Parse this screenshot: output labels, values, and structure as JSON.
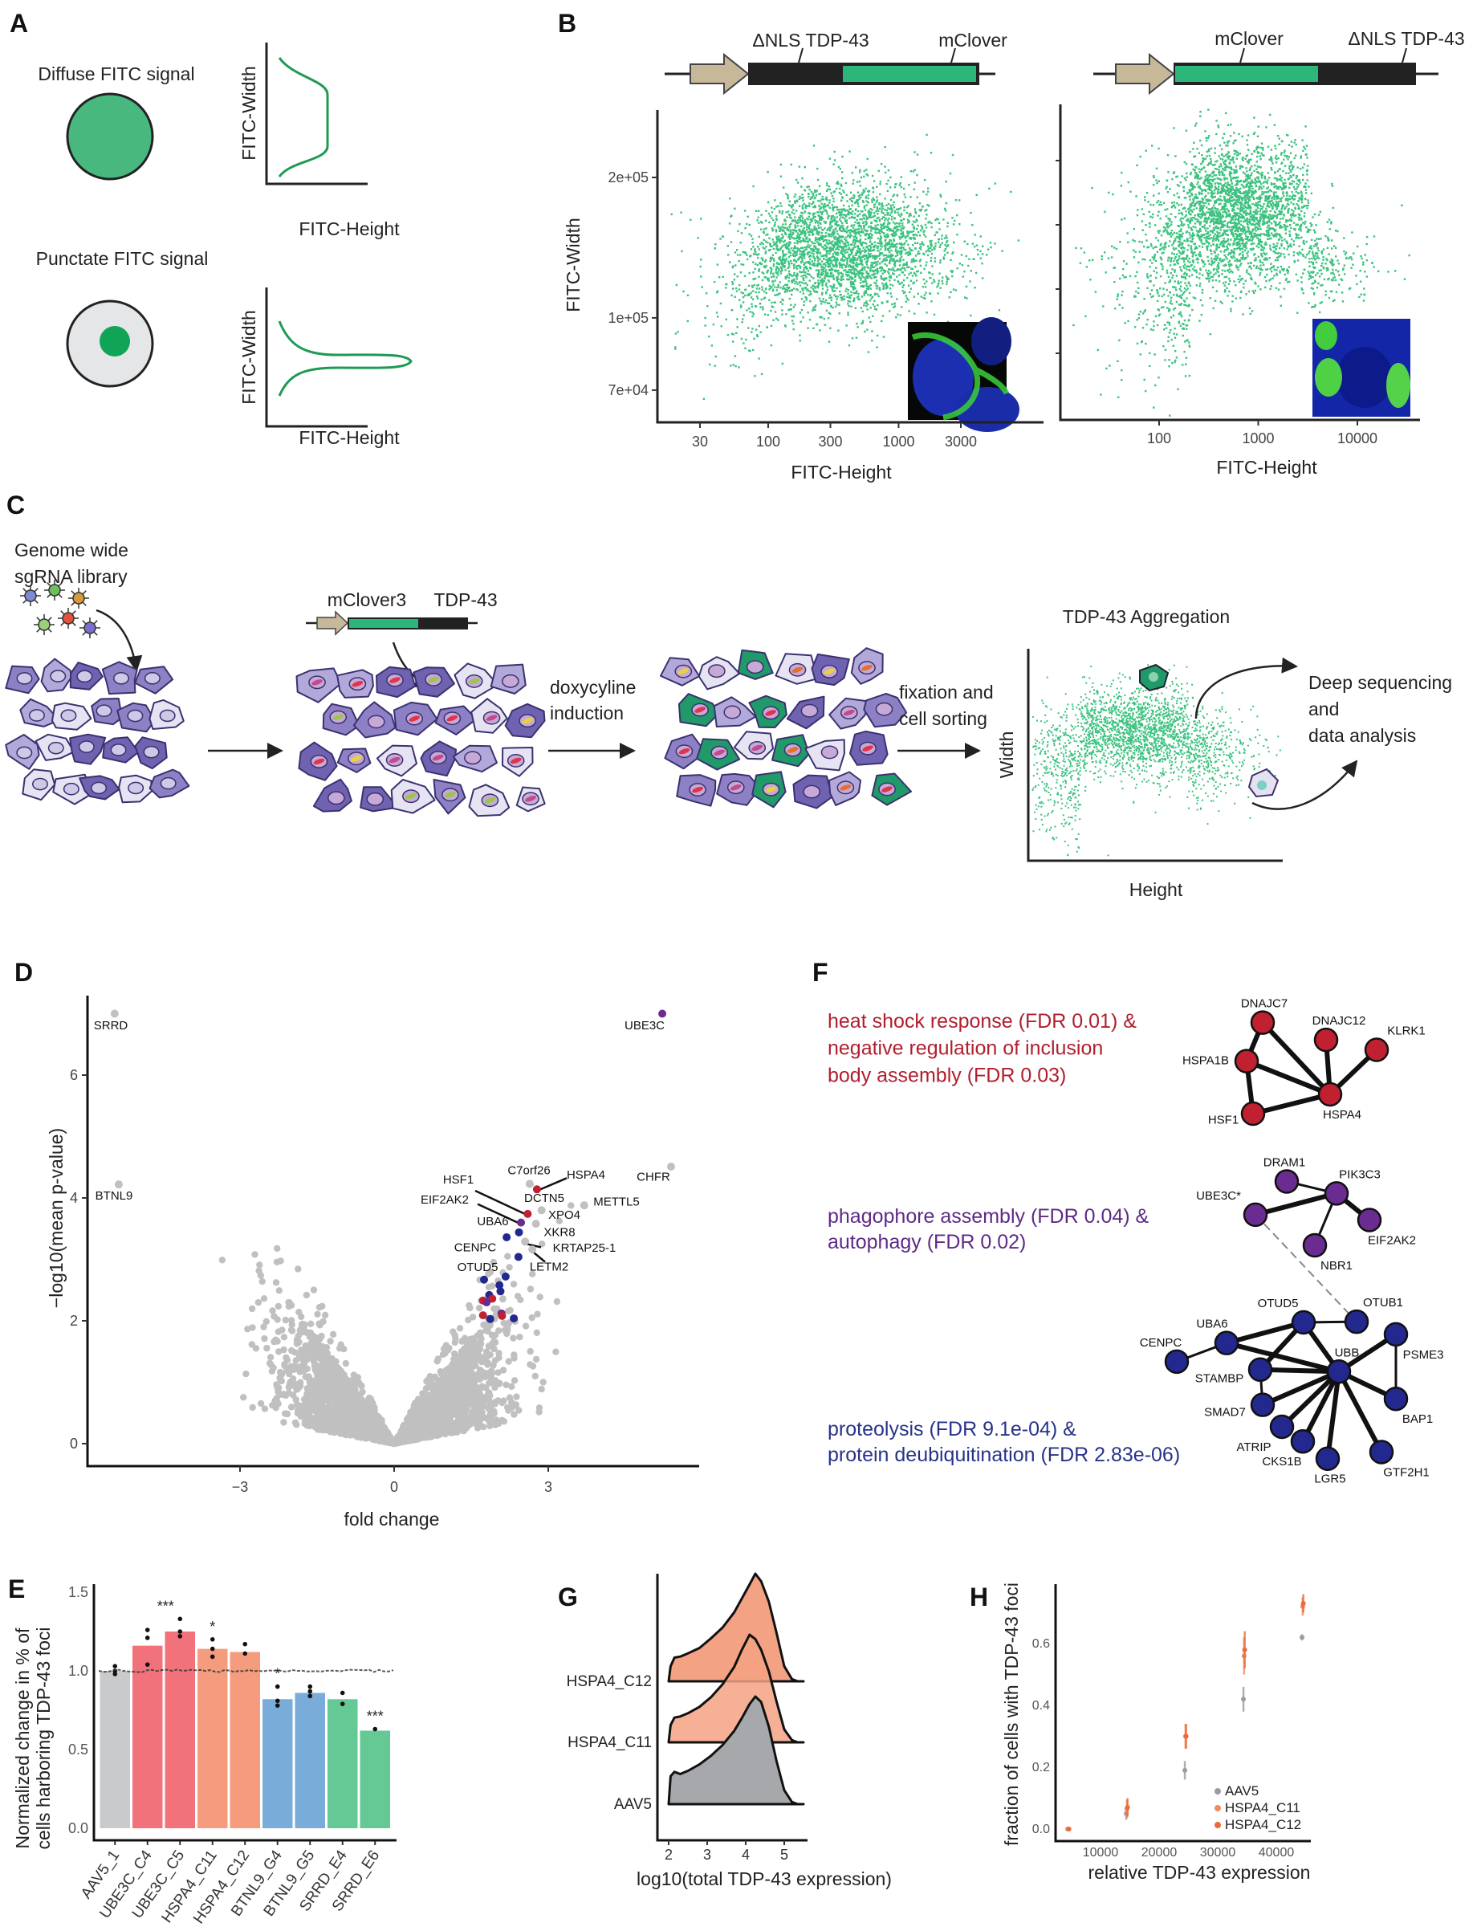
{
  "panels": {
    "a": "A",
    "b": "B",
    "c": "C",
    "d": "D",
    "e": "E",
    "f": "F",
    "g": "G",
    "h": "H"
  },
  "colors": {
    "fitc_green": "#48b87f",
    "scatter_green": "#3cc27f",
    "promoter_tan": "#c7b89a",
    "cell_purple": "#8d80c4",
    "cell_light": "#e6e3f2",
    "gray_points": "#c0c0c0"
  },
  "panel_a": {
    "diffuse_title": "Diffuse FITC signal",
    "punctate_title": "Punctate FITC signal",
    "y_label": "FITC-Width",
    "x_label": "FITC-Height"
  },
  "panel_b": {
    "construct_1": {
      "label_left": "ΔNLS TDP-43",
      "label_right": "mClover"
    },
    "construct_2": {
      "label_left": "mClover",
      "label_right": "ΔNLS TDP-43"
    },
    "plot_1": {
      "y_label": "FITC-Width",
      "x_label": "FITC-Height",
      "x_scale": "log",
      "x_ticks": [
        "30",
        "100",
        "300",
        "1000",
        "3000"
      ],
      "y_scale": "log",
      "y_ticks": [
        "2e+05",
        "1e+05",
        "7e+04"
      ],
      "inset": "confocal image, cytoplasmic mClover signal"
    },
    "plot_2": {
      "x_label": "FITC-Height",
      "x_scale": "log",
      "x_ticks": [
        "100",
        "1000",
        "10000"
      ],
      "inset": "confocal image, nuclear mClover aggregates"
    }
  },
  "panel_c": {
    "library_line_1": "Genome wide",
    "library_line_2": "sgRNA library",
    "construct_left": "mClover3",
    "construct_right": "TDP-43",
    "step_1_line_1": "doxycyline",
    "step_1_line_2": "induction",
    "step_2_line_1": "fixation and",
    "step_2_line_2": "cell sorting",
    "plot_title": "TDP-43 Aggregation",
    "y_label": "Width",
    "x_label": "Height",
    "output_line_1": "Deep sequencing",
    "output_line_2": "and",
    "output_line_3": "data analysis"
  },
  "chart_data": [
    {
      "id": "volcano",
      "type": "scatter",
      "xlabel": "fold change",
      "ylabel": "−log10(mean p-value)",
      "x_ticks": [
        -3,
        0,
        3
      ],
      "y_ticks": [
        0,
        2,
        4,
        6
      ],
      "xlim": [
        -5.9,
        6.0
      ],
      "ylim": [
        -0.35,
        7.7
      ],
      "grid": false,
      "group_colors": {
        "heat_shock": "#c0202f",
        "autophagy": "#6a2c91",
        "proteolysis": "#23288f",
        "other": "#c0c0c0"
      },
      "points": [
        {
          "label": "SRRD",
          "x": -5.44,
          "y": 7.0,
          "group": "other"
        },
        {
          "label": "BTNL9",
          "x": -5.36,
          "y": 4.22,
          "group": "other"
        },
        {
          "label": "UBE3C",
          "x": 5.22,
          "y": 7.0,
          "group": "autophagy"
        },
        {
          "label": "CHFR",
          "x": 5.39,
          "y": 4.51,
          "group": "other"
        },
        {
          "label": "C7orf26",
          "x": 2.64,
          "y": 4.23,
          "group": "other"
        },
        {
          "label": "HSPA4",
          "x": 2.78,
          "y": 4.14,
          "group": "heat_shock"
        },
        {
          "label": "METTL5",
          "x": 3.7,
          "y": 3.88,
          "group": "other"
        },
        {
          "label": "DCTN5",
          "x": 2.87,
          "y": 3.8,
          "group": "other"
        },
        {
          "label": "HSF1",
          "x": 2.6,
          "y": 3.74,
          "group": "heat_shock"
        },
        {
          "label": "EIF2AK2",
          "x": 2.47,
          "y": 3.6,
          "group": "autophagy"
        },
        {
          "label": "XPO4",
          "x": 2.76,
          "y": 3.58,
          "group": "other"
        },
        {
          "label": "UBA6",
          "x": 2.19,
          "y": 3.36,
          "group": "proteolysis"
        },
        {
          "label": "XKR8",
          "x": 2.43,
          "y": 3.44,
          "group": "proteolysis"
        },
        {
          "label": "KRTAP25-1",
          "x": 2.55,
          "y": 3.29,
          "group": "other"
        },
        {
          "label": "LETM2",
          "x": 2.69,
          "y": 3.16,
          "group": "other"
        },
        {
          "label": "CENPC",
          "x": 2.42,
          "y": 3.04,
          "group": "proteolysis"
        },
        {
          "label": "OTUD5",
          "x": 2.17,
          "y": 2.72,
          "group": "proteolysis"
        },
        {
          "label": "",
          "x": 1.75,
          "y": 2.67,
          "group": "proteolysis"
        },
        {
          "label": "",
          "x": 2.05,
          "y": 2.58,
          "group": "proteolysis"
        },
        {
          "label": "",
          "x": 2.07,
          "y": 2.48,
          "group": "proteolysis"
        },
        {
          "label": "",
          "x": 1.85,
          "y": 2.42,
          "group": "proteolysis"
        },
        {
          "label": "",
          "x": 1.73,
          "y": 2.33,
          "group": "heat_shock"
        },
        {
          "label": "",
          "x": 1.91,
          "y": 2.36,
          "group": "heat_shock"
        },
        {
          "label": "",
          "x": 1.8,
          "y": 2.3,
          "group": "autophagy"
        },
        {
          "label": "",
          "x": 1.73,
          "y": 2.09,
          "group": "heat_shock"
        },
        {
          "label": "",
          "x": 2.09,
          "y": 2.12,
          "group": "autophagy"
        },
        {
          "label": "",
          "x": 2.1,
          "y": 2.08,
          "group": "heat_shock"
        },
        {
          "label": "",
          "x": 1.87,
          "y": 2.03,
          "group": "proteolysis"
        },
        {
          "label": "",
          "x": 2.33,
          "y": 2.04,
          "group": "proteolysis"
        }
      ]
    },
    {
      "id": "foci_bars",
      "type": "bar",
      "ylabel_line_1": "Normalized change in % of",
      "ylabel_line_2": "cells harboring TDP-43 foci",
      "y_ticks": [
        "0.0",
        "0.5",
        "1.0",
        "1.5"
      ],
      "ylim": [
        0,
        1.55
      ],
      "reference_line": 1.0,
      "categories": [
        "AAV5_1",
        "UBE3C_C4",
        "UBE3C_C5",
        "HSPA4_C11",
        "HSPA4_C12",
        "BTNL9_G4",
        "BTNL9_G5",
        "SRRD_E4",
        "SRRD_E6"
      ],
      "values": [
        1.0,
        1.16,
        1.25,
        1.14,
        1.12,
        0.82,
        0.86,
        0.82,
        0.62
      ],
      "replicates": [
        [
          1.03,
          0.98,
          1.0
        ],
        [
          1.26,
          1.21,
          1.04
        ],
        [
          1.33,
          1.25,
          1.22
        ],
        [
          1.2,
          1.14,
          1.09
        ],
        [
          1.17,
          1.11
        ],
        [
          0.9,
          0.81,
          0.78
        ],
        [
          0.9,
          0.87,
          0.84
        ],
        [
          0.86,
          0.79
        ],
        [
          0.63
        ]
      ],
      "bar_colors": [
        "#c9cacc",
        "#f1727a",
        "#f1727a",
        "#f59c7e",
        "#f59c7e",
        "#79acd8",
        "#79acd8",
        "#64c994",
        "#64c994"
      ],
      "significance": [
        "",
        "",
        "***",
        "*",
        "",
        "*",
        "",
        "",
        "***"
      ]
    },
    {
      "id": "ridges",
      "type": "area",
      "xlabel": "log10(total TDP-43 expression)",
      "x_ticks": [
        2,
        3,
        4,
        5
      ],
      "x": [
        2.0,
        2.05,
        2.15,
        2.3,
        2.5,
        2.8,
        3.1,
        3.4,
        3.7,
        3.9,
        4.1,
        4.25,
        4.4,
        4.6,
        4.8,
        5.0,
        5.2,
        5.35,
        5.5
      ],
      "series": [
        {
          "name": "HSPA4_C12",
          "color": "#f3a283",
          "density": [
            0,
            0.14,
            0.22,
            0.23,
            0.26,
            0.31,
            0.4,
            0.5,
            0.64,
            0.77,
            0.9,
            1.0,
            0.93,
            0.74,
            0.45,
            0.14,
            0.02,
            0.0,
            0.0
          ]
        },
        {
          "name": "HSPA4_C11",
          "color": "#f3a283",
          "density": [
            0,
            0.16,
            0.23,
            0.24,
            0.27,
            0.33,
            0.42,
            0.54,
            0.7,
            0.86,
            1.0,
            0.96,
            0.86,
            0.66,
            0.38,
            0.12,
            0.02,
            0.0,
            0.0
          ]
        },
        {
          "name": "AAV5",
          "color": "#a7a8ac",
          "density": [
            0,
            0.26,
            0.3,
            0.28,
            0.31,
            0.37,
            0.45,
            0.55,
            0.68,
            0.8,
            0.93,
            1.0,
            0.95,
            0.72,
            0.4,
            0.13,
            0.02,
            0.0,
            0.0
          ]
        }
      ]
    },
    {
      "id": "foci_fraction",
      "type": "scatter",
      "xlabel": "relative TDP-43 expression",
      "ylabel": "fraction of cells with TDP-43 foci",
      "x_ticks": [
        10000,
        20000,
        30000,
        40000
      ],
      "y_ticks": [
        "0.0",
        "0.2",
        "0.4",
        "0.6"
      ],
      "legend_position": "bottom-right",
      "x": [
        4500,
        14500,
        24500,
        34500,
        44500
      ],
      "series": [
        {
          "name": "AAV5",
          "color": "#9c9c9c",
          "values": [
            0.0,
            0.05,
            0.19,
            0.42,
            0.62
          ],
          "error": [
            0.005,
            0.02,
            0.03,
            0.04,
            0.01
          ]
        },
        {
          "name": "HSPA4_C11",
          "color": "#f08a5d",
          "values": [
            0.0,
            0.065,
            0.3,
            0.56,
            0.72
          ],
          "error": [
            0.005,
            0.03,
            0.04,
            0.06,
            0.03
          ]
        },
        {
          "name": "HSPA4_C12",
          "color": "#ea6a3a",
          "values": [
            0.0,
            0.07,
            0.3,
            0.58,
            0.73
          ],
          "error": [
            0.005,
            0.03,
            0.04,
            0.06,
            0.03
          ]
        }
      ]
    }
  ],
  "panel_f": {
    "clusters": [
      {
        "id": "heat_shock",
        "color": "#c0202f",
        "text_color": "#b01f2e",
        "desc_lines": [
          "heat shock response  (FDR 0.01) &",
          "negative regulation of inclusion",
          "body assembly (FDR 0.03)"
        ]
      },
      {
        "id": "autophagy",
        "color": "#6a2c91",
        "text_color": "#5e2a86",
        "desc_lines": [
          "phagophore assembly (FDR 0.04) &",
          "autophagy (FDR 0.02)"
        ]
      },
      {
        "id": "proteolysis",
        "color": "#23288f",
        "text_color": "#27338a",
        "desc_lines": [
          "proteolysis (FDR 9.1e-04) &",
          "protein deubiquitination (FDR 2.83e-06)"
        ]
      }
    ],
    "nodes": [
      {
        "name": "DNAJC7",
        "cluster": "heat_shock"
      },
      {
        "name": "DNAJC12",
        "cluster": "heat_shock"
      },
      {
        "name": "KLRK1",
        "cluster": "heat_shock"
      },
      {
        "name": "HSPA1B",
        "cluster": "heat_shock"
      },
      {
        "name": "HSF1",
        "cluster": "heat_shock"
      },
      {
        "name": "HSPA4",
        "cluster": "heat_shock"
      },
      {
        "name": "DRAM1",
        "cluster": "autophagy"
      },
      {
        "name": "PIK3C3",
        "cluster": "autophagy"
      },
      {
        "name": "UBE3C*",
        "cluster": "autophagy"
      },
      {
        "name": "EIF2AK2",
        "cluster": "autophagy"
      },
      {
        "name": "NBR1",
        "cluster": "autophagy"
      },
      {
        "name": "OTUD5",
        "cluster": "proteolysis"
      },
      {
        "name": "OTUB1",
        "cluster": "proteolysis"
      },
      {
        "name": "UBA6",
        "cluster": "proteolysis"
      },
      {
        "name": "CENPC",
        "cluster": "proteolysis"
      },
      {
        "name": "PSME3",
        "cluster": "proteolysis"
      },
      {
        "name": "UBB",
        "cluster": "proteolysis"
      },
      {
        "name": "STAMBP",
        "cluster": "proteolysis"
      },
      {
        "name": "SMAD7",
        "cluster": "proteolysis"
      },
      {
        "name": "BAP1",
        "cluster": "proteolysis"
      },
      {
        "name": "ATRIP",
        "cluster": "proteolysis"
      },
      {
        "name": "CKS1B",
        "cluster": "proteolysis"
      },
      {
        "name": "LGR5",
        "cluster": "proteolysis"
      },
      {
        "name": "GTF2H1",
        "cluster": "proteolysis"
      }
    ],
    "edges": [
      [
        "DNAJC7",
        "HSPA1B",
        "thick"
      ],
      [
        "DNAJC7",
        "HSPA4",
        "thick"
      ],
      [
        "HSPA1B",
        "HSPA4",
        "thick"
      ],
      [
        "HSPA1B",
        "HSF1",
        "thick"
      ],
      [
        "HSF1",
        "HSPA4",
        "thick"
      ],
      [
        "DNAJC12",
        "HSPA4",
        "thick"
      ],
      [
        "KLRK1",
        "HSPA4",
        "thick"
      ],
      [
        "DRAM1",
        "PIK3C3",
        "thin"
      ],
      [
        "UBE3C*",
        "PIK3C3",
        "thick"
      ],
      [
        "PIK3C3",
        "EIF2AK2",
        "thick"
      ],
      [
        "PIK3C3",
        "NBR1",
        "thin"
      ],
      [
        "UBE3C*",
        "OTUB1",
        "dashed"
      ],
      [
        "CENPC",
        "UBA6",
        "thin"
      ],
      [
        "UBA6",
        "OTUD5",
        "thick"
      ],
      [
        "UBA6",
        "UBB",
        "thick"
      ],
      [
        "OTUD5",
        "OTUB1",
        "thin"
      ],
      [
        "OTUD5",
        "STAMBP",
        "thick"
      ],
      [
        "OTUD5",
        "UBB",
        "thick"
      ],
      [
        "STAMBP",
        "UBB",
        "thick"
      ],
      [
        "STAMBP",
        "SMAD7",
        "thin"
      ],
      [
        "SMAD7",
        "UBB",
        "thick"
      ],
      [
        "ATRIP",
        "UBB",
        "thick"
      ],
      [
        "CKS1B",
        "UBB",
        "thick"
      ],
      [
        "LGR5",
        "UBB",
        "thick"
      ],
      [
        "GTF2H1",
        "UBB",
        "thick"
      ],
      [
        "BAP1",
        "UBB",
        "thick"
      ],
      [
        "PSME3",
        "UBB",
        "thick"
      ],
      [
        "PSME3",
        "BAP1",
        "thin"
      ]
    ]
  }
}
